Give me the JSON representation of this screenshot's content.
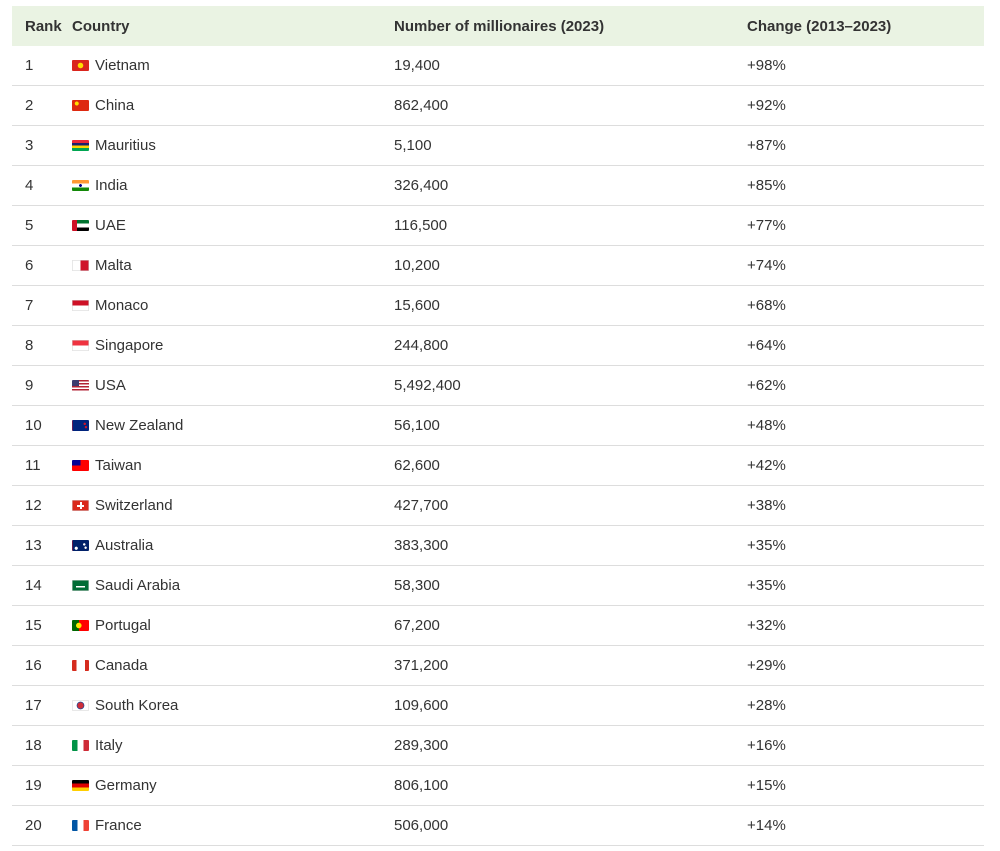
{
  "table": {
    "headers": {
      "rank": "Rank",
      "country": "Country",
      "millionaires": "Number of millionaires (2023)",
      "change": "Change (2013–2023)"
    },
    "rows": [
      {
        "rank": "1",
        "country": "Vietnam",
        "flag_icon": "vietnam-flag-icon",
        "millionaires": "19,400",
        "change": "+98%"
      },
      {
        "rank": "2",
        "country": "China",
        "flag_icon": "china-flag-icon",
        "millionaires": "862,400",
        "change": "+92%"
      },
      {
        "rank": "3",
        "country": "Mauritius",
        "flag_icon": "mauritius-flag-icon",
        "millionaires": "5,100",
        "change": "+87%"
      },
      {
        "rank": "4",
        "country": "India",
        "flag_icon": "india-flag-icon",
        "millionaires": "326,400",
        "change": "+85%"
      },
      {
        "rank": "5",
        "country": "UAE",
        "flag_icon": "uae-flag-icon",
        "millionaires": "116,500",
        "change": "+77%"
      },
      {
        "rank": "6",
        "country": "Malta",
        "flag_icon": "malta-flag-icon",
        "millionaires": "10,200",
        "change": "+74%"
      },
      {
        "rank": "7",
        "country": "Monaco",
        "flag_icon": "monaco-flag-icon",
        "millionaires": "15,600",
        "change": "+68%"
      },
      {
        "rank": "8",
        "country": "Singapore",
        "flag_icon": "singapore-flag-icon",
        "millionaires": "244,800",
        "change": "+64%"
      },
      {
        "rank": "9",
        "country": "USA",
        "flag_icon": "usa-flag-icon",
        "millionaires": "5,492,400",
        "change": "+62%"
      },
      {
        "rank": "10",
        "country": "New Zealand",
        "flag_icon": "new-zealand-flag-icon",
        "millionaires": "56,100",
        "change": "+48%"
      },
      {
        "rank": "11",
        "country": "Taiwan",
        "flag_icon": "taiwan-flag-icon",
        "millionaires": "62,600",
        "change": "+42%"
      },
      {
        "rank": "12",
        "country": "Switzerland",
        "flag_icon": "switzerland-flag-icon",
        "millionaires": "427,700",
        "change": "+38%"
      },
      {
        "rank": "13",
        "country": "Australia",
        "flag_icon": "australia-flag-icon",
        "millionaires": "383,300",
        "change": "+35%"
      },
      {
        "rank": "14",
        "country": "Saudi Arabia",
        "flag_icon": "saudi-arabia-flag-icon",
        "millionaires": "58,300",
        "change": "+35%"
      },
      {
        "rank": "15",
        "country": "Portugal",
        "flag_icon": "portugal-flag-icon",
        "millionaires": "67,200",
        "change": "+32%"
      },
      {
        "rank": "16",
        "country": "Canada",
        "flag_icon": "canada-flag-icon",
        "millionaires": "371,200",
        "change": "+29%"
      },
      {
        "rank": "17",
        "country": "South Korea",
        "flag_icon": "south-korea-flag-icon",
        "millionaires": "109,600",
        "change": "+28%"
      },
      {
        "rank": "18",
        "country": "Italy",
        "flag_icon": "italy-flag-icon",
        "millionaires": "289,300",
        "change": "+16%"
      },
      {
        "rank": "19",
        "country": "Germany",
        "flag_icon": "germany-flag-icon",
        "millionaires": "806,100",
        "change": "+15%"
      },
      {
        "rank": "20",
        "country": "France",
        "flag_icon": "france-flag-icon",
        "millionaires": "506,000",
        "change": "+14%"
      }
    ]
  },
  "colors": {
    "header_background": "#eaf3e3",
    "row_border": "#dddddd",
    "text": "#333333"
  }
}
